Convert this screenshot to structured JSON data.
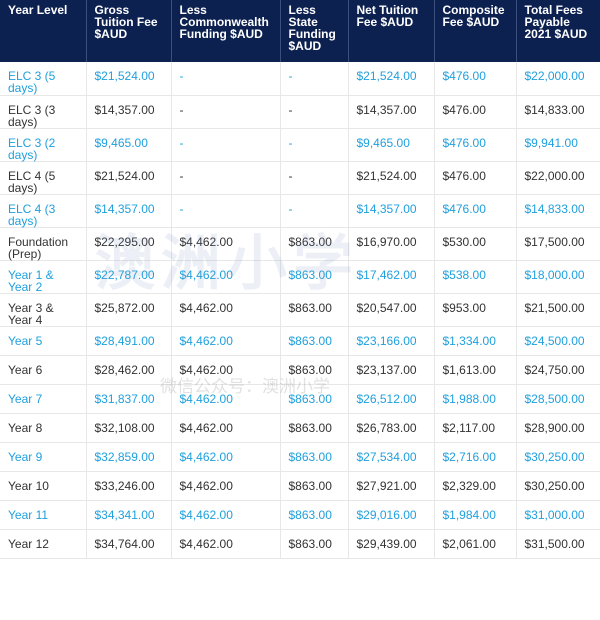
{
  "table": {
    "headers": [
      "Year Level",
      "Gross Tuition Fee $AUD",
      "Less Commonwealth Funding $AUD",
      "Less State Funding $AUD",
      "Net Tuition Fee $AUD",
      "Composite Fee $AUD",
      "Total Fees Payable 2021 $AUD"
    ],
    "rows": [
      [
        "ELC 3 (5 days)",
        "$21,524.00",
        "-",
        "-",
        "$21,524.00",
        "$476.00",
        "$22,000.00"
      ],
      [
        "ELC 3 (3 days)",
        "$14,357.00",
        "-",
        "-",
        "$14,357.00",
        "$476.00",
        "$14,833.00"
      ],
      [
        "ELC 3 (2 days)",
        "$9,465.00",
        "-",
        "-",
        "$9,465.00",
        "$476.00",
        "$9,941.00"
      ],
      [
        "ELC 4 (5 days)",
        "$21,524.00",
        "-",
        "-",
        "$21,524.00",
        "$476.00",
        "$22,000.00"
      ],
      [
        "ELC 4 (3 days)",
        "$14,357.00",
        "-",
        "-",
        "$14,357.00",
        "$476.00",
        "$14,833.00"
      ],
      [
        "Foundation (Prep)",
        "$22,295.00",
        "$4,462.00",
        "$863.00",
        "$16,970.00",
        "$530.00",
        "$17,500.00"
      ],
      [
        "Year 1 & Year 2",
        "$22,787.00",
        "$4,462.00",
        "$863.00",
        "$17,462.00",
        "$538.00",
        "$18,000.00"
      ],
      [
        "Year 3 & Year 4",
        "$25,872.00",
        "$4,462.00",
        "$863.00",
        "$20,547.00",
        "$953.00",
        "$21,500.00"
      ],
      [
        "Year 5",
        "$28,491.00",
        "$4,462.00",
        "$863.00",
        "$23,166.00",
        "$1,334.00",
        "$24,500.00"
      ],
      [
        "Year 6",
        "$28,462.00",
        "$4,462.00",
        "$863.00",
        "$23,137.00",
        "$1,613.00",
        "$24,750.00"
      ],
      [
        "Year 7",
        "$31,837.00",
        "$4,462.00",
        "$863.00",
        "$26,512.00",
        "$1,988.00",
        "$28,500.00"
      ],
      [
        "Year 8",
        "$32,108.00",
        "$4,462.00",
        "$863.00",
        "$26,783.00",
        "$2,117.00",
        "$28,900.00"
      ],
      [
        "Year 9",
        "$32,859.00",
        "$4,462.00",
        "$863.00",
        "$27,534.00",
        "$2,716.00",
        "$30,250.00"
      ],
      [
        "Year 10",
        "$33,246.00",
        "$4,462.00",
        "$863.00",
        "$27,921.00",
        "$2,329.00",
        "$30,250.00"
      ],
      [
        "Year 11",
        "$34,341.00",
        "$4,462.00",
        "$863.00",
        "$29,016.00",
        "$1,984.00",
        "$31,000.00"
      ],
      [
        "Year 12",
        "$34,764.00",
        "$4,462.00",
        "$863.00",
        "$29,439.00",
        "$2,061.00",
        "$31,500.00"
      ]
    ]
  },
  "watermark": {
    "main": "澳洲小学",
    "sub": "微信公众号：澳洲小学"
  },
  "colors": {
    "header_bg": "#0d2151",
    "header_text": "#ffffff",
    "alt_row_text": "#1fa0dd",
    "row_text": "#333333"
  }
}
